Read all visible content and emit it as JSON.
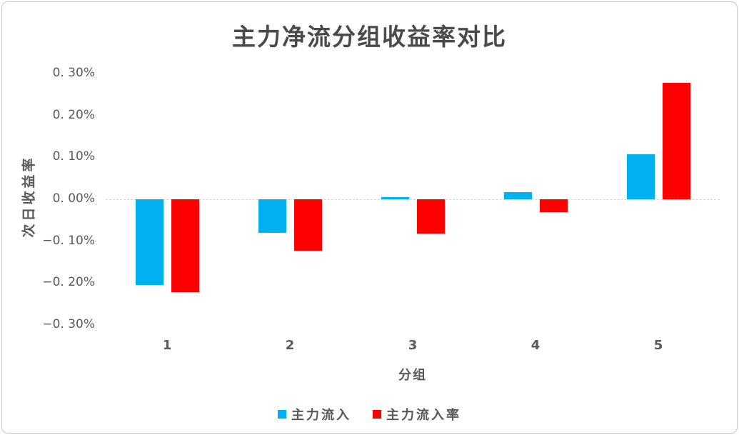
{
  "title": "主力净流分组收益率对比",
  "colors": {
    "series1_blue": "#00B0F0",
    "series2_red": "#FF0000",
    "axis_text": "#595959",
    "title_text": "#4a4a4a",
    "zero_line": "#dcd6c8",
    "frame_border": "#c7c7c7"
  },
  "chart_data": {
    "type": "bar",
    "title": "主力净流分组收益率对比",
    "xlabel": "分组",
    "ylabel": "次日收益率",
    "categories": [
      "1",
      "2",
      "3",
      "4",
      "5"
    ],
    "series": [
      {
        "name": "主力流入",
        "color": "#00B0F0",
        "values": [
          -0.204,
          -0.08,
          0.005,
          0.017,
          0.108
        ]
      },
      {
        "name": "主力流入率",
        "color": "#FF0000",
        "values": [
          -0.221,
          -0.122,
          -0.081,
          -0.031,
          0.278
        ]
      }
    ],
    "unit": "%",
    "ylim": [
      -0.3,
      0.3
    ],
    "ytick_step": 0.1,
    "ytick_labels": [
      "0. 30%",
      "0. 20%",
      "0. 10%",
      "0. 00%",
      "−0. 10%",
      "−0. 20%",
      "−0. 30%"
    ],
    "legend_position": "bottom",
    "grid": false
  }
}
